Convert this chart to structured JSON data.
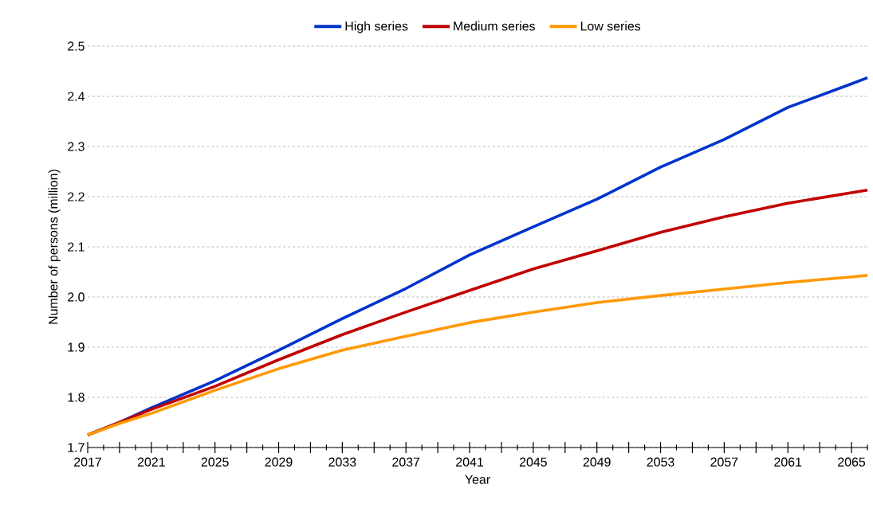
{
  "chart_data": {
    "type": "line",
    "xlabel": "Year",
    "ylabel": "Number of persons (million)",
    "x": [
      2017,
      2019,
      2021,
      2025,
      2029,
      2033,
      2037,
      2041,
      2045,
      2049,
      2053,
      2057,
      2061,
      2065,
      2066
    ],
    "xlim": [
      2017,
      2066
    ],
    "xticks": [
      2017,
      {
        "value": 2018,
        "label": null
      },
      {
        "value": 2019,
        "label": null
      },
      {
        "value": 2020,
        "label": null
      },
      2021,
      {
        "value": 2022,
        "label": null
      },
      {
        "value": 2023,
        "label": null
      },
      {
        "value": 2024,
        "label": null
      },
      2025,
      {
        "value": 2026,
        "label": null
      },
      {
        "value": 2027,
        "label": null
      },
      {
        "value": 2028,
        "label": null
      },
      2029,
      {
        "value": 2030,
        "label": null
      },
      {
        "value": 2031,
        "label": null
      },
      {
        "value": 2032,
        "label": null
      },
      2033,
      {
        "value": 2034,
        "label": null
      },
      {
        "value": 2035,
        "label": null
      },
      {
        "value": 2036,
        "label": null
      },
      2037,
      {
        "value": 2038,
        "label": null
      },
      {
        "value": 2039,
        "label": null
      },
      {
        "value": 2040,
        "label": null
      },
      2041,
      {
        "value": 2042,
        "label": null
      },
      {
        "value": 2043,
        "label": null
      },
      {
        "value": 2044,
        "label": null
      },
      2045,
      {
        "value": 2046,
        "label": null
      },
      {
        "value": 2047,
        "label": null
      },
      {
        "value": 2048,
        "label": null
      },
      2049,
      {
        "value": 2050,
        "label": null
      },
      {
        "value": 2051,
        "label": null
      },
      {
        "value": 2052,
        "label": null
      },
      2053,
      {
        "value": 2054,
        "label": null
      },
      {
        "value": 2055,
        "label": null
      },
      {
        "value": 2056,
        "label": null
      },
      2057,
      {
        "value": 2058,
        "label": null
      },
      {
        "value": 2059,
        "label": null
      },
      {
        "value": 2060,
        "label": null
      },
      2061,
      {
        "value": 2062,
        "label": null
      },
      {
        "value": 2063,
        "label": null
      },
      {
        "value": 2064,
        "label": null
      },
      2065,
      {
        "value": 2066,
        "label": null
      }
    ],
    "ylim": [
      1.7,
      2.5
    ],
    "yticks": [
      1.7,
      1.8,
      1.9,
      {
        "value": 2.0,
        "label": "2.0"
      },
      2.1,
      2.2,
      2.3,
      2.4,
      2.5
    ],
    "grid": "y",
    "legend": "top",
    "series": [
      {
        "name": "High series",
        "color": "#0033cc",
        "values": [
          1.725,
          1.75,
          1.779,
          1.833,
          1.894,
          1.957,
          2.017,
          2.084,
          2.14,
          2.195,
          2.259,
          2.314,
          2.378,
          2.425,
          2.437
        ]
      },
      {
        "name": "Medium series",
        "color": "#c00000",
        "values": [
          1.725,
          1.75,
          1.776,
          1.822,
          1.875,
          1.925,
          1.97,
          2.013,
          2.056,
          2.092,
          2.129,
          2.16,
          2.187,
          2.208,
          2.213
        ]
      },
      {
        "name": "Low series",
        "color": "#ff9900",
        "values": [
          1.725,
          1.748,
          1.768,
          1.814,
          1.857,
          1.894,
          1.922,
          1.949,
          1.97,
          1.989,
          2.003,
          2.016,
          2.029,
          2.04,
          2.043
        ]
      }
    ]
  }
}
